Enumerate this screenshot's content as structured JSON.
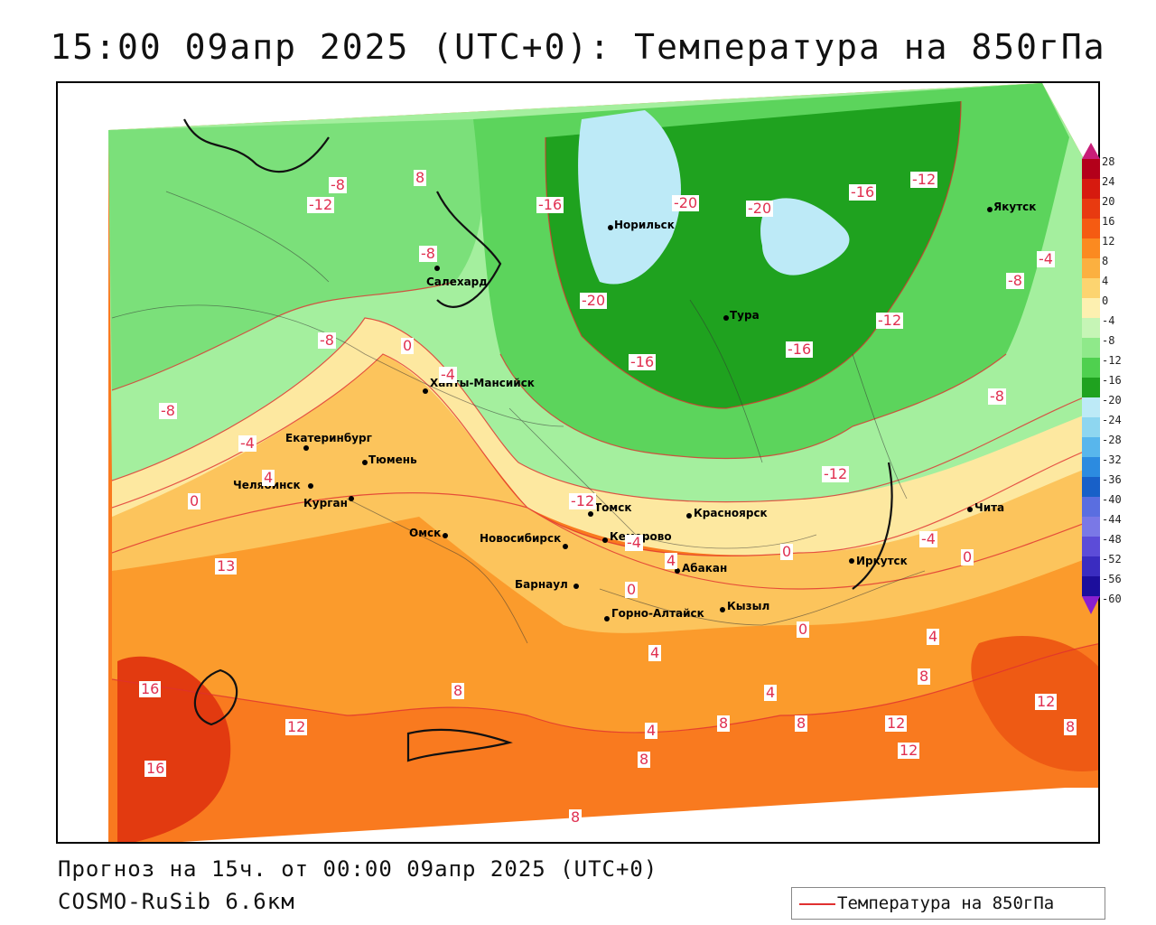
{
  "title": "15:00 09апр 2025 (UTC+0): Температура на 850гПа",
  "forecast_line": "Прогноз на 15ч. от 00:00 09апр 2025 (UTC+0)",
  "model_line": "COSMO-RuSib 6.6км",
  "legend": {
    "label": "Температура на 850гПа",
    "color": "#e03030"
  },
  "colorbar": {
    "ticks": [
      "28",
      "24",
      "20",
      "16",
      "12",
      "8",
      "4",
      "0",
      "-4",
      "-8",
      "-12",
      "-16",
      "-20",
      "-24",
      "-28",
      "-32",
      "-36",
      "-40",
      "-44",
      "-48",
      "-52",
      "-56",
      "-60"
    ]
  },
  "cities": [
    {
      "name": "Норильск"
    },
    {
      "name": "Якутск"
    },
    {
      "name": "Салехард"
    },
    {
      "name": "Тура"
    },
    {
      "name": "Ханты-Мансийск"
    },
    {
      "name": "Екатеринбург"
    },
    {
      "name": "Тюмень"
    },
    {
      "name": "Челябинск"
    },
    {
      "name": "Курган"
    },
    {
      "name": "Омск"
    },
    {
      "name": "Томск"
    },
    {
      "name": "Красноярск"
    },
    {
      "name": "Новосибирск"
    },
    {
      "name": "Кемерово"
    },
    {
      "name": "Абакан"
    },
    {
      "name": "Иркутск"
    },
    {
      "name": "Барнаул"
    },
    {
      "name": "Горно-Алтайск"
    },
    {
      "name": "Кызыл"
    },
    {
      "name": "Чита"
    }
  ],
  "contour_labels": [
    "-8",
    "-12",
    "8",
    "-8",
    "-16",
    "-20",
    "-20",
    "-16",
    "-12",
    "-4",
    "-8",
    "-20",
    "0",
    "-4",
    "-16",
    "-16",
    "-12",
    "-8",
    "-8",
    "-4",
    "4",
    "0",
    "-12",
    "-12",
    "-8",
    "-4",
    "0",
    "13",
    "0",
    "4",
    "-4",
    "0",
    "0",
    "4",
    "8",
    "16",
    "12",
    "16",
    "8",
    "4",
    "8",
    "4",
    "8",
    "12",
    "12",
    "12",
    "8",
    "8",
    "8",
    "4"
  ]
}
